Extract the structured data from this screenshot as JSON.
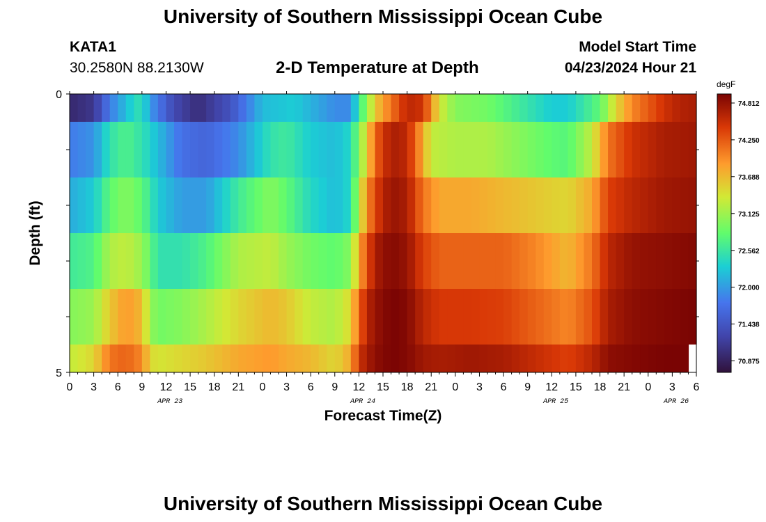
{
  "header": {
    "title": "University of Southern Mississippi Ocean Cube",
    "station_id": "KATA1",
    "coordinates": "30.2580N  88.2130W",
    "plot_title": "2-D Temperature at Depth",
    "model_start_label": "Model Start Time",
    "model_start_value": "04/23/2024 Hour 21"
  },
  "footer": {
    "title": "University of Southern Mississippi Ocean Cube"
  },
  "chart_data": {
    "type": "heatmap",
    "title": "2-D Temperature at Depth",
    "xlabel": "Forecast Time(Z)",
    "ylabel": "Depth (ft)",
    "x_tick_labels": [
      "0",
      "3",
      "6",
      "9",
      "12",
      "15",
      "18",
      "21",
      "0",
      "3",
      "6",
      "9",
      "12",
      "15",
      "18",
      "21",
      "0",
      "3",
      "6",
      "9",
      "12",
      "15",
      "18",
      "21",
      "0",
      "3",
      "6"
    ],
    "x_hours_range": [
      0,
      78
    ],
    "date_labels": [
      {
        "label": "APR 23",
        "hour": 12.5
      },
      {
        "label": "APR 24",
        "hour": 36.5
      },
      {
        "label": "APR 25",
        "hour": 60.5
      },
      {
        "label": "APR 26",
        "hour": 75.5
      }
    ],
    "y_tick_labels": [
      "0",
      "5"
    ],
    "ylim": [
      0,
      5
    ],
    "colorbar": {
      "unit": "degF",
      "tick_labels": [
        "74.812",
        "74.250",
        "73.688",
        "73.125",
        "72.562",
        "72.000",
        "71.438",
        "70.875"
      ],
      "min": 70.7,
      "max": 74.95
    },
    "rows": [
      {
        "depth_range": "0-0.5 ft",
        "keys": [
          [
            0,
            70.95
          ],
          [
            3,
            71.1
          ],
          [
            5,
            71.8
          ],
          [
            8,
            72.4
          ],
          [
            9,
            72.5
          ],
          [
            10,
            72.0
          ],
          [
            13,
            71.3
          ],
          [
            16,
            71.0
          ],
          [
            20,
            71.4
          ],
          [
            24,
            72.2
          ],
          [
            28,
            72.3
          ],
          [
            33,
            71.9
          ],
          [
            35,
            71.9
          ],
          [
            36,
            72.6
          ],
          [
            37,
            73.0
          ],
          [
            38,
            73.6
          ],
          [
            40,
            74.1
          ],
          [
            42,
            74.6
          ],
          [
            44,
            74.5
          ],
          [
            46,
            73.4
          ],
          [
            48,
            73.0
          ],
          [
            52,
            72.9
          ],
          [
            56,
            72.6
          ],
          [
            60,
            72.3
          ],
          [
            62,
            72.3
          ],
          [
            66,
            72.8
          ],
          [
            68,
            73.5
          ],
          [
            70,
            74.0
          ],
          [
            74,
            74.5
          ],
          [
            76,
            74.65
          ],
          [
            78,
            74.7
          ]
        ]
      },
      {
        "depth_range": "0.5-1.5 ft",
        "keys": [
          [
            0,
            71.8
          ],
          [
            3,
            71.95
          ],
          [
            5,
            72.5
          ],
          [
            7,
            72.7
          ],
          [
            9,
            72.5
          ],
          [
            11,
            72.2
          ],
          [
            14,
            71.7
          ],
          [
            17,
            71.6
          ],
          [
            21,
            71.9
          ],
          [
            25,
            72.5
          ],
          [
            27,
            72.6
          ],
          [
            30,
            72.3
          ],
          [
            33,
            72.2
          ],
          [
            35,
            72.4
          ],
          [
            36,
            73.0
          ],
          [
            37,
            73.5
          ],
          [
            38,
            74.2
          ],
          [
            40,
            74.7
          ],
          [
            42,
            74.6
          ],
          [
            44,
            73.8
          ],
          [
            45,
            73.3
          ],
          [
            48,
            73.2
          ],
          [
            52,
            73.2
          ],
          [
            56,
            73.0
          ],
          [
            60,
            72.8
          ],
          [
            62,
            72.75
          ],
          [
            65,
            73.3
          ],
          [
            67,
            74.1
          ],
          [
            70,
            74.5
          ],
          [
            74,
            74.7
          ],
          [
            78,
            74.75
          ]
        ]
      },
      {
        "depth_range": "1.5-2.5 ft",
        "keys": [
          [
            0,
            72.1
          ],
          [
            3,
            72.3
          ],
          [
            5,
            72.8
          ],
          [
            7,
            73.0
          ],
          [
            9,
            72.8
          ],
          [
            11,
            72.3
          ],
          [
            14,
            72.0
          ],
          [
            17,
            72.0
          ],
          [
            21,
            72.6
          ],
          [
            25,
            73.0
          ],
          [
            27,
            72.8
          ],
          [
            30,
            72.4
          ],
          [
            33,
            72.2
          ],
          [
            35,
            72.4
          ],
          [
            36,
            73.3
          ],
          [
            37,
            73.9
          ],
          [
            38,
            74.4
          ],
          [
            40,
            74.8
          ],
          [
            42,
            74.7
          ],
          [
            44,
            74.1
          ],
          [
            46,
            73.8
          ],
          [
            50,
            73.8
          ],
          [
            54,
            73.7
          ],
          [
            58,
            73.6
          ],
          [
            62,
            73.5
          ],
          [
            65,
            73.8
          ],
          [
            67,
            74.4
          ],
          [
            70,
            74.6
          ],
          [
            74,
            74.75
          ],
          [
            78,
            74.8
          ]
        ]
      },
      {
        "depth_range": "2.5-3.5 ft",
        "keys": [
          [
            0,
            72.6
          ],
          [
            3,
            72.7
          ],
          [
            5,
            73.2
          ],
          [
            7,
            73.3
          ],
          [
            9,
            73.1
          ],
          [
            11,
            72.5
          ],
          [
            14,
            72.5
          ],
          [
            17,
            72.7
          ],
          [
            21,
            73.2
          ],
          [
            25,
            73.3
          ],
          [
            27,
            73.1
          ],
          [
            30,
            72.9
          ],
          [
            33,
            72.8
          ],
          [
            35,
            73.0
          ],
          [
            36,
            73.8
          ],
          [
            37,
            74.3
          ],
          [
            38,
            74.7
          ],
          [
            40,
            74.9
          ],
          [
            42,
            74.8
          ],
          [
            44,
            74.4
          ],
          [
            46,
            74.2
          ],
          [
            50,
            74.2
          ],
          [
            54,
            74.2
          ],
          [
            58,
            74.0
          ],
          [
            62,
            73.7
          ],
          [
            65,
            74.1
          ],
          [
            67,
            74.6
          ],
          [
            70,
            74.8
          ],
          [
            74,
            74.85
          ],
          [
            78,
            74.9
          ]
        ]
      },
      {
        "depth_range": "3.5-4.5 ft",
        "keys": [
          [
            0,
            73.0
          ],
          [
            3,
            73.1
          ],
          [
            5,
            73.6
          ],
          [
            7,
            73.9
          ],
          [
            9,
            73.7
          ],
          [
            10,
            73.1
          ],
          [
            11,
            72.9
          ],
          [
            14,
            73.0
          ],
          [
            17,
            73.2
          ],
          [
            21,
            73.5
          ],
          [
            25,
            73.7
          ],
          [
            27,
            73.6
          ],
          [
            30,
            73.3
          ],
          [
            33,
            73.2
          ],
          [
            35,
            73.5
          ],
          [
            36,
            74.2
          ],
          [
            37,
            74.6
          ],
          [
            38,
            74.8
          ],
          [
            40,
            74.95
          ],
          [
            42,
            74.9
          ],
          [
            44,
            74.6
          ],
          [
            46,
            74.45
          ],
          [
            50,
            74.45
          ],
          [
            54,
            74.4
          ],
          [
            58,
            74.2
          ],
          [
            62,
            74.0
          ],
          [
            65,
            74.3
          ],
          [
            67,
            74.7
          ],
          [
            70,
            74.85
          ],
          [
            74,
            74.9
          ],
          [
            78,
            74.95
          ]
        ]
      },
      {
        "depth_range": "4.5-5 ft",
        "keys": [
          [
            0,
            73.3
          ],
          [
            3,
            73.5
          ],
          [
            5,
            74.1
          ],
          [
            7,
            74.2
          ],
          [
            9,
            74.0
          ],
          [
            10,
            73.5
          ],
          [
            11,
            73.4
          ],
          [
            14,
            73.5
          ],
          [
            17,
            73.6
          ],
          [
            21,
            73.8
          ],
          [
            25,
            73.9
          ],
          [
            27,
            73.8
          ],
          [
            30,
            73.7
          ],
          [
            33,
            73.5
          ],
          [
            35,
            73.8
          ],
          [
            36,
            74.5
          ],
          [
            37,
            74.7
          ],
          [
            38,
            74.85
          ],
          [
            40,
            74.95
          ],
          [
            42,
            74.9
          ],
          [
            44,
            74.75
          ],
          [
            46,
            74.7
          ],
          [
            50,
            74.75
          ],
          [
            54,
            74.7
          ],
          [
            58,
            74.55
          ],
          [
            62,
            74.4
          ],
          [
            65,
            74.6
          ],
          [
            67,
            74.85
          ],
          [
            70,
            74.9
          ],
          [
            74,
            74.95
          ],
          [
            77,
            74.95
          ]
        ]
      }
    ]
  }
}
